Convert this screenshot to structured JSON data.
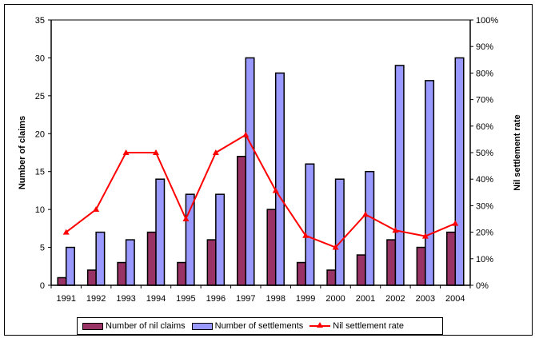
{
  "chart_data": {
    "type": "bar+line",
    "title": "",
    "categories": [
      "1991",
      "1992",
      "1993",
      "1994",
      "1995",
      "1996",
      "1997",
      "1998",
      "1999",
      "2000",
      "2001",
      "2002",
      "2003",
      "2004"
    ],
    "series": [
      {
        "name": "Number of nil claims",
        "type": "bar",
        "axis": "left",
        "color": "#993366",
        "values": [
          1,
          2,
          3,
          7,
          3,
          6,
          17,
          10,
          3,
          2,
          4,
          6,
          5,
          7
        ]
      },
      {
        "name": "Number of settlements",
        "type": "bar",
        "axis": "left",
        "color": "#9999ff",
        "values": [
          5,
          7,
          6,
          14,
          12,
          12,
          30,
          28,
          16,
          14,
          15,
          29,
          27,
          30
        ]
      },
      {
        "name": "Nil settlement rate",
        "type": "line",
        "axis": "right",
        "color": "#ff0000",
        "marker": "triangle",
        "values": [
          0.2,
          0.286,
          0.5,
          0.5,
          0.25,
          0.5,
          0.567,
          0.357,
          0.1875,
          0.143,
          0.267,
          0.207,
          0.185,
          0.233
        ]
      }
    ],
    "ylabel": "Number of claims",
    "ylim": [
      0,
      35
    ],
    "yticks": [
      0,
      5,
      10,
      15,
      20,
      25,
      30,
      35
    ],
    "y2label": "Nil settlement rate",
    "y2lim": [
      0,
      1
    ],
    "y2ticks": [
      "0%",
      "10%",
      "20%",
      "30%",
      "40%",
      "50%",
      "60%",
      "70%",
      "80%",
      "90%",
      "100%"
    ],
    "grid": false,
    "legend_position": "bottom"
  },
  "legend": {
    "items": [
      "Number of nil claims",
      "Number of settlements",
      "Nil settlement rate"
    ]
  }
}
